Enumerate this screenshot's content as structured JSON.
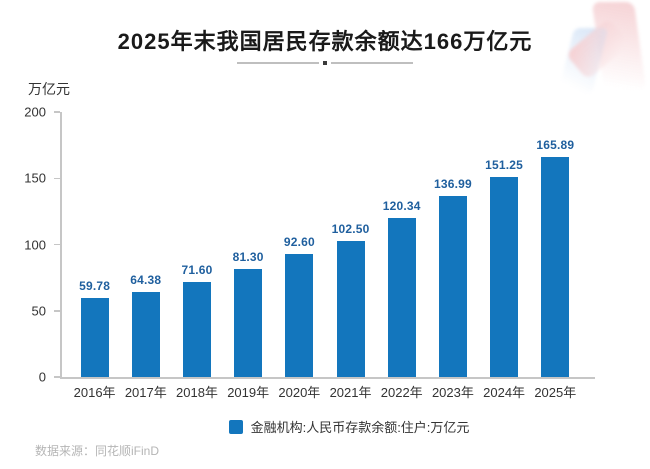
{
  "poster": {
    "title": "2025年末我国居民存款余额达166万亿元",
    "legend_label": "金融机构:人民币存款余额:住户:万亿元",
    "source": "数据来源：同花顺iFinD"
  },
  "colors": {
    "bar": "#1376BD",
    "value_label": "#1F5F9E",
    "title_text": "#1A1A1A",
    "axis_line": "#C6C6C6",
    "axis_text": "#333333",
    "source_text": "#B5B5B5",
    "divider_line": "#BFBFBF",
    "divider_dot": "#3A3A3A",
    "watermark_blue": "#CFE0F5",
    "watermark_pink": "#F4CBCE"
  },
  "chart_data": {
    "type": "bar",
    "title": "2025年末我国居民存款余额达166万亿元",
    "categories": [
      "2016年",
      "2017年",
      "2018年",
      "2019年",
      "2020年",
      "2021年",
      "2022年",
      "2023年",
      "2024年",
      "2025年"
    ],
    "values": [
      59.78,
      64.38,
      71.6,
      81.3,
      92.6,
      102.5,
      120.34,
      136.99,
      151.25,
      165.89
    ],
    "value_label_decimals": 2,
    "xlabel": "",
    "ylabel": "万亿元",
    "ylim": [
      0,
      200
    ],
    "yticks": [
      0,
      50,
      100,
      150,
      200
    ],
    "grid": false,
    "legend": [
      "金融机构:人民币存款余额:住户:万亿元"
    ],
    "legend_position": "bottom"
  }
}
